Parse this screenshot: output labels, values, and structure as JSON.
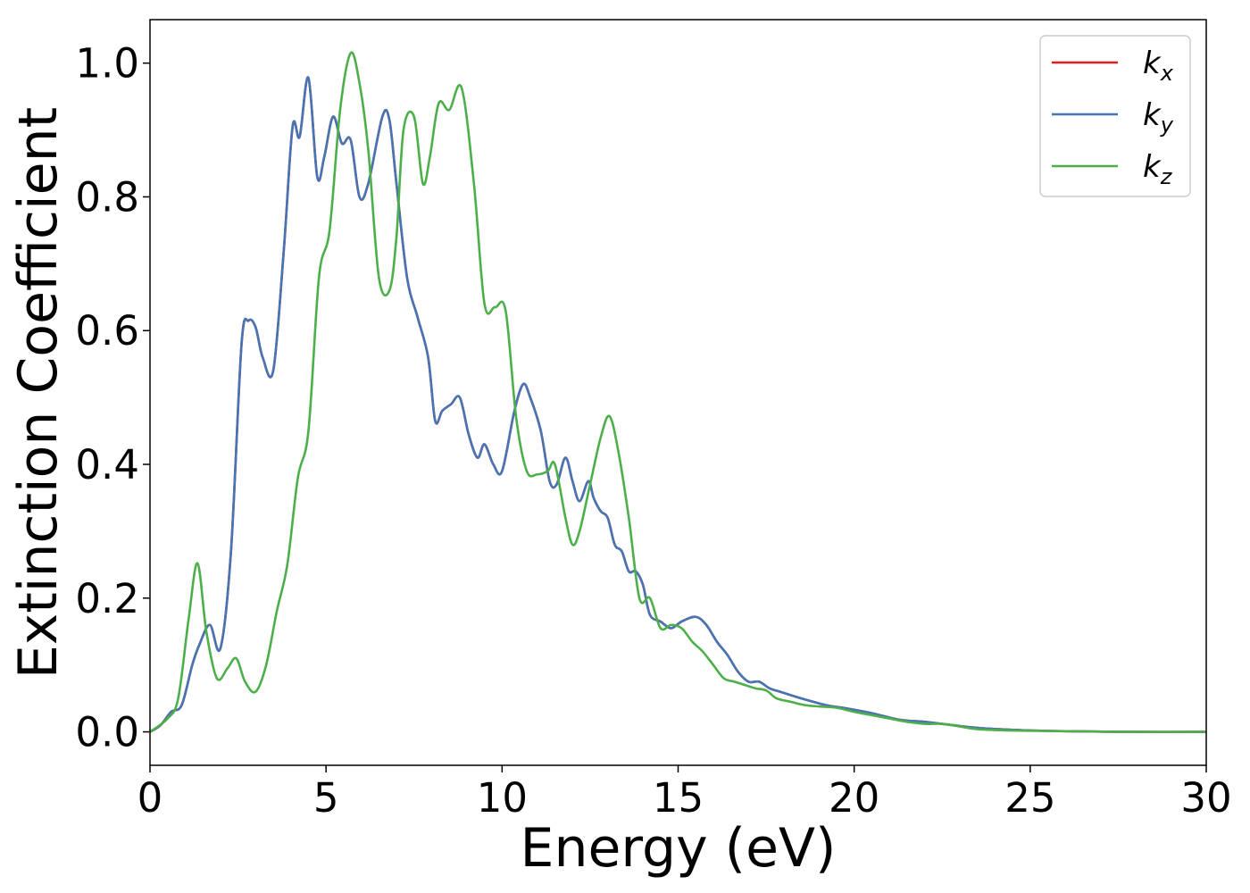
{
  "chart_data": {
    "type": "line",
    "xlabel": "Energy (eV)",
    "ylabel": "Extinction Coefficient",
    "xlim": [
      0,
      30
    ],
    "ylim": [
      -0.05,
      1.065
    ],
    "xticks": [
      0,
      5,
      10,
      15,
      20,
      25,
      30
    ],
    "xtick_labels": [
      "0",
      "5",
      "10",
      "15",
      "20",
      "25",
      "30"
    ],
    "yticks": [
      0.0,
      0.2,
      0.4,
      0.6,
      0.8,
      1.0
    ],
    "ytick_labels": [
      "0.0",
      "0.2",
      "0.4",
      "0.6",
      "0.8",
      "1.0"
    ],
    "grid": false,
    "legend_position": "top-right",
    "series": [
      {
        "name": "k",
        "subscript": "x",
        "color": "#e41a1c",
        "x": [
          0,
          0.3,
          0.6,
          0.9,
          1.2,
          1.4,
          1.7,
          2.0,
          2.3,
          2.6,
          2.8,
          3.0,
          3.2,
          3.5,
          3.8,
          4.05,
          4.25,
          4.5,
          4.75,
          4.95,
          5.2,
          5.45,
          5.7,
          5.95,
          6.2,
          6.6,
          6.8,
          7.0,
          7.3,
          7.6,
          7.9,
          8.1,
          8.3,
          8.55,
          8.8,
          9.05,
          9.3,
          9.5,
          9.75,
          10.0,
          10.35,
          10.6,
          10.8,
          11.1,
          11.35,
          11.55,
          11.8,
          12.0,
          12.2,
          12.45,
          12.6,
          12.8,
          13.0,
          13.2,
          13.4,
          13.6,
          13.8,
          14.0,
          14.2,
          14.5,
          14.8,
          15.1,
          15.5,
          15.8,
          16.1,
          16.4,
          16.7,
          17.0,
          17.3,
          17.6,
          17.9,
          18.5,
          19.2,
          19.8,
          20.5,
          21.3,
          22.0,
          22.8,
          23.5,
          24.5,
          26,
          28,
          30
        ],
        "y": [
          0.0,
          0.01,
          0.03,
          0.04,
          0.1,
          0.13,
          0.16,
          0.125,
          0.27,
          0.58,
          0.615,
          0.605,
          0.56,
          0.54,
          0.72,
          0.905,
          0.89,
          0.978,
          0.83,
          0.86,
          0.92,
          0.88,
          0.885,
          0.8,
          0.82,
          0.92,
          0.915,
          0.82,
          0.68,
          0.62,
          0.56,
          0.465,
          0.48,
          0.49,
          0.5,
          0.445,
          0.41,
          0.43,
          0.4,
          0.39,
          0.48,
          0.52,
          0.5,
          0.45,
          0.375,
          0.37,
          0.41,
          0.375,
          0.345,
          0.375,
          0.35,
          0.33,
          0.32,
          0.28,
          0.27,
          0.24,
          0.24,
          0.22,
          0.175,
          0.165,
          0.155,
          0.165,
          0.172,
          0.16,
          0.135,
          0.115,
          0.09,
          0.075,
          0.075,
          0.065,
          0.06,
          0.05,
          0.04,
          0.035,
          0.028,
          0.018,
          0.015,
          0.01,
          0.006,
          0.003,
          0.001,
          0.0,
          0.0
        ]
      },
      {
        "name": "k",
        "subscript": "y",
        "color": "#4575b4",
        "x": [
          0,
          0.3,
          0.6,
          0.9,
          1.2,
          1.4,
          1.7,
          2.0,
          2.3,
          2.6,
          2.8,
          3.0,
          3.2,
          3.5,
          3.8,
          4.05,
          4.25,
          4.5,
          4.75,
          4.95,
          5.2,
          5.45,
          5.7,
          5.95,
          6.2,
          6.6,
          6.8,
          7.0,
          7.3,
          7.6,
          7.9,
          8.1,
          8.3,
          8.55,
          8.8,
          9.05,
          9.3,
          9.5,
          9.75,
          10.0,
          10.35,
          10.6,
          10.8,
          11.1,
          11.35,
          11.55,
          11.8,
          12.0,
          12.2,
          12.45,
          12.6,
          12.8,
          13.0,
          13.2,
          13.4,
          13.6,
          13.8,
          14.0,
          14.2,
          14.5,
          14.8,
          15.1,
          15.5,
          15.8,
          16.1,
          16.4,
          16.7,
          17.0,
          17.3,
          17.6,
          17.9,
          18.5,
          19.2,
          19.8,
          20.5,
          21.3,
          22.0,
          22.8,
          23.5,
          24.5,
          26,
          28,
          30
        ],
        "y": [
          0.0,
          0.01,
          0.03,
          0.04,
          0.1,
          0.13,
          0.16,
          0.125,
          0.27,
          0.58,
          0.615,
          0.605,
          0.56,
          0.54,
          0.72,
          0.905,
          0.89,
          0.978,
          0.83,
          0.86,
          0.92,
          0.88,
          0.885,
          0.8,
          0.82,
          0.92,
          0.915,
          0.82,
          0.68,
          0.62,
          0.56,
          0.465,
          0.48,
          0.49,
          0.5,
          0.445,
          0.41,
          0.43,
          0.4,
          0.39,
          0.48,
          0.52,
          0.5,
          0.45,
          0.375,
          0.37,
          0.41,
          0.375,
          0.345,
          0.375,
          0.35,
          0.33,
          0.32,
          0.28,
          0.27,
          0.24,
          0.24,
          0.22,
          0.175,
          0.165,
          0.155,
          0.165,
          0.172,
          0.16,
          0.135,
          0.115,
          0.09,
          0.075,
          0.075,
          0.065,
          0.06,
          0.05,
          0.04,
          0.035,
          0.028,
          0.018,
          0.015,
          0.01,
          0.006,
          0.003,
          0.001,
          0.0,
          0.0
        ]
      },
      {
        "name": "k",
        "subscript": "z",
        "color": "#4daf4a",
        "x": [
          0,
          0.5,
          0.8,
          1.1,
          1.35,
          1.6,
          1.9,
          2.2,
          2.45,
          2.7,
          3.0,
          3.3,
          3.6,
          3.9,
          4.2,
          4.5,
          4.8,
          5.1,
          5.4,
          5.7,
          5.95,
          6.2,
          6.5,
          6.8,
          7.0,
          7.2,
          7.5,
          7.75,
          7.95,
          8.2,
          8.5,
          8.85,
          9.2,
          9.5,
          9.8,
          10.1,
          10.4,
          10.7,
          11.0,
          11.3,
          11.5,
          11.8,
          12.0,
          12.2,
          12.5,
          12.8,
          13.05,
          13.3,
          13.6,
          13.9,
          14.2,
          14.5,
          14.8,
          15.1,
          15.4,
          15.7,
          16.0,
          16.3,
          16.6,
          16.9,
          17.2,
          17.5,
          17.8,
          18.2,
          18.6,
          19.0,
          19.5,
          20.0,
          20.5,
          21.0,
          21.5,
          22.0,
          22.5,
          23.0,
          23.5,
          24.5,
          26,
          28,
          30
        ],
        "y": [
          0.0,
          0.02,
          0.05,
          0.17,
          0.252,
          0.15,
          0.08,
          0.095,
          0.11,
          0.075,
          0.06,
          0.1,
          0.18,
          0.25,
          0.38,
          0.45,
          0.68,
          0.75,
          0.93,
          1.015,
          0.97,
          0.87,
          0.68,
          0.66,
          0.74,
          0.9,
          0.92,
          0.82,
          0.86,
          0.94,
          0.93,
          0.963,
          0.82,
          0.64,
          0.635,
          0.63,
          0.47,
          0.39,
          0.385,
          0.39,
          0.4,
          0.32,
          0.28,
          0.3,
          0.37,
          0.44,
          0.472,
          0.42,
          0.32,
          0.2,
          0.2,
          0.155,
          0.16,
          0.155,
          0.135,
          0.12,
          0.1,
          0.08,
          0.075,
          0.07,
          0.065,
          0.062,
          0.05,
          0.045,
          0.04,
          0.038,
          0.036,
          0.03,
          0.025,
          0.02,
          0.015,
          0.012,
          0.012,
          0.008,
          0.004,
          0.002,
          0.001,
          0.0,
          0.0
        ]
      }
    ]
  }
}
